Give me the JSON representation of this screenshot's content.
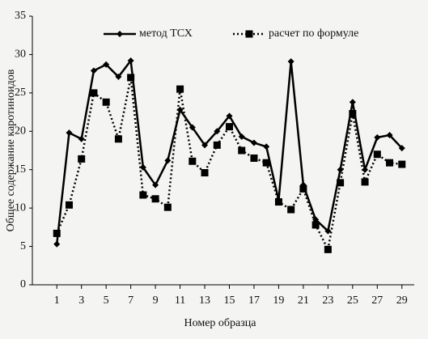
{
  "chart_data": {
    "type": "line",
    "x": [
      1,
      2,
      3,
      4,
      5,
      6,
      7,
      8,
      9,
      10,
      11,
      12,
      13,
      14,
      15,
      16,
      17,
      18,
      19,
      20,
      21,
      22,
      23,
      24,
      25,
      26,
      27,
      28,
      29
    ],
    "xlim": [
      0,
      30
    ],
    "xticks": [
      1,
      3,
      5,
      7,
      9,
      11,
      13,
      15,
      17,
      19,
      21,
      23,
      25,
      27,
      29
    ],
    "ylim": [
      0,
      35
    ],
    "yticks": [
      0,
      5,
      10,
      15,
      20,
      25,
      30,
      35
    ],
    "xlabel": "Номер образца",
    "ylabel": "Общее содержание каротиноидов",
    "legend": "top",
    "series": [
      {
        "name": "метод ТСХ",
        "color": "#000000",
        "dash": "solid",
        "marker": "diamond",
        "values": [
          5.3,
          19.8,
          19.0,
          27.9,
          28.7,
          27.1,
          29.2,
          15.3,
          13.0,
          16.2,
          22.8,
          20.5,
          18.2,
          20.0,
          22.0,
          19.3,
          18.5,
          18.0,
          11.0,
          29.1,
          13.0,
          8.5,
          7.0,
          15.0,
          23.8,
          15.0,
          19.2,
          19.5,
          17.8
        ]
      },
      {
        "name": "расчет по формуле",
        "color": "#000000",
        "dash": "dotted",
        "marker": "square",
        "values": [
          6.7,
          10.4,
          16.4,
          25.0,
          23.8,
          19.0,
          27.0,
          11.7,
          11.2,
          10.1,
          25.5,
          16.1,
          14.6,
          18.2,
          20.6,
          17.5,
          16.5,
          15.9,
          10.8,
          9.8,
          12.5,
          7.8,
          4.6,
          13.3,
          22.3,
          13.4,
          17.0,
          15.9,
          15.7
        ]
      }
    ]
  }
}
